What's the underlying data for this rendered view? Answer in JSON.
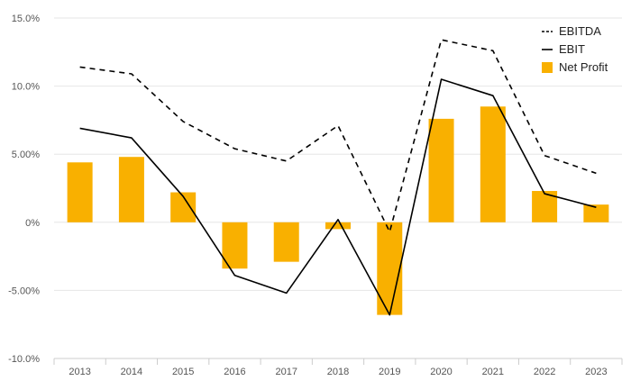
{
  "chart_data": {
    "type": "bar",
    "title": "",
    "xlabel": "",
    "ylabel": "",
    "categories": [
      "2013",
      "2014",
      "2015",
      "2016",
      "2017",
      "2018",
      "2019",
      "2020",
      "2021",
      "2022",
      "2023"
    ],
    "ylim": [
      -10.0,
      15.0
    ],
    "yticks": [
      15.0,
      10.0,
      5.0,
      0,
      -5.0,
      -10.0
    ],
    "ytick_labels": [
      "15.0%",
      "10.0%",
      "5.00%",
      "0%",
      "-5.00%",
      "-10.0%"
    ],
    "grid": true,
    "legend_position": "top-right",
    "series": [
      {
        "name": "EBITDA",
        "type": "line",
        "style": "dashed",
        "color": "#000000",
        "values": [
          11.4,
          10.9,
          7.4,
          5.4,
          4.5,
          7.1,
          -0.7,
          13.4,
          12.6,
          4.9,
          3.6
        ]
      },
      {
        "name": "EBIT",
        "type": "line",
        "style": "solid",
        "color": "#000000",
        "values": [
          6.9,
          6.2,
          1.9,
          -3.9,
          -5.2,
          0.2,
          -6.8,
          10.5,
          9.3,
          2.1,
          1.1
        ]
      },
      {
        "name": "Net Profit",
        "type": "bar",
        "color": "#F9B000",
        "values": [
          4.4,
          4.8,
          2.2,
          -3.4,
          -2.9,
          -0.5,
          -6.8,
          7.6,
          8.5,
          2.3,
          1.3
        ]
      }
    ]
  }
}
